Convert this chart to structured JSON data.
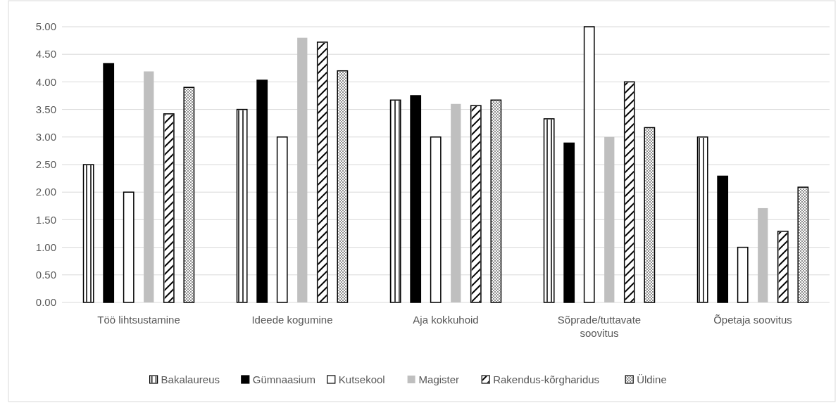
{
  "chart_data": {
    "type": "bar",
    "categories": [
      "Töö lihtsustamine",
      "Ideede kogumine",
      "Aja kokkuhoid",
      "Sõprade/tuttavate soovitus",
      "Õpetaja soovitus"
    ],
    "series": [
      {
        "name": "Bakalaureus",
        "color": "#ffffff",
        "values": [
          2.5,
          3.5,
          3.67,
          3.33,
          3.0
        ]
      },
      {
        "name": "Gümnaasium",
        "color": "#000000",
        "values": [
          4.33,
          4.03,
          3.75,
          2.89,
          2.29
        ]
      },
      {
        "name": "Kutsekool",
        "color": "#ffffff",
        "values": [
          2.0,
          3.0,
          3.0,
          5.0,
          1.0
        ]
      },
      {
        "name": "Magister",
        "color": "#bfbfbf",
        "values": [
          4.19,
          4.8,
          3.6,
          3.0,
          1.71
        ]
      },
      {
        "name": "Rakendus-kõrgharidus",
        "color": "#ffffff",
        "values": [
          3.42,
          4.72,
          3.57,
          4.0,
          1.29
        ]
      },
      {
        "name": "Üldine",
        "color": "#ffffff",
        "values": [
          3.9,
          4.2,
          3.67,
          3.17,
          2.09
        ]
      }
    ],
    "ylim": [
      0,
      5
    ],
    "yticks": [
      {
        "value": 0,
        "label": "0.00"
      },
      {
        "value": 0.5,
        "label": "0.50"
      },
      {
        "value": 1,
        "label": "1.00"
      },
      {
        "value": 1.5,
        "label": "1.50"
      },
      {
        "value": 2,
        "label": "2.00"
      },
      {
        "value": 2.5,
        "label": "2.50"
      },
      {
        "value": 3,
        "label": "3.00"
      },
      {
        "value": 3.5,
        "label": "3.50"
      },
      {
        "value": 4,
        "label": "4.00"
      },
      {
        "value": 4.5,
        "label": "4.50"
      },
      {
        "value": 5,
        "label": "5.00"
      }
    ],
    "grid": "y",
    "legend": "bottom"
  }
}
